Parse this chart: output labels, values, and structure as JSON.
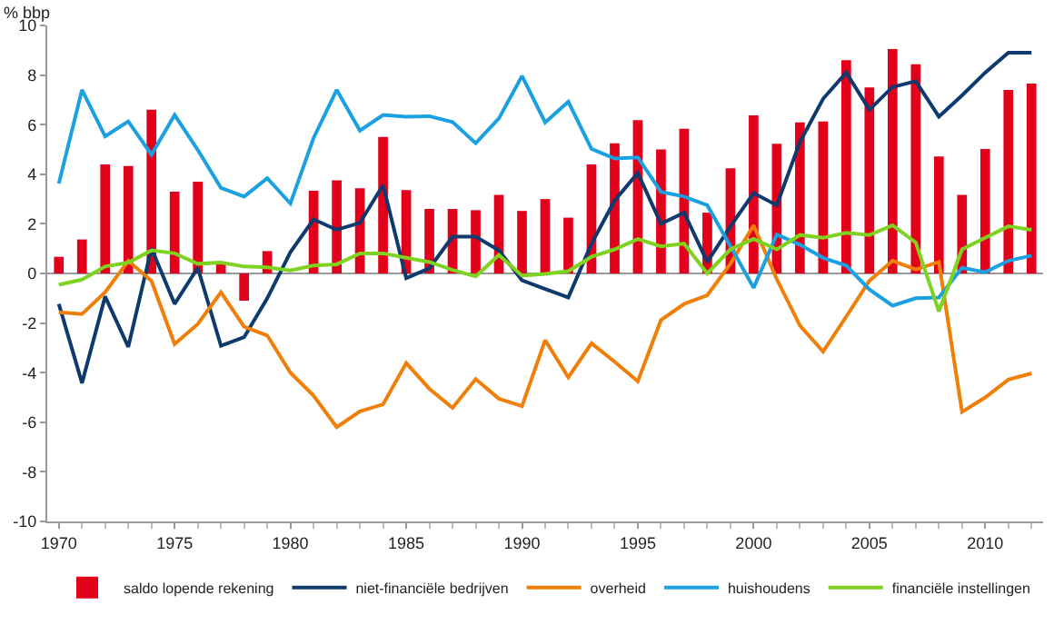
{
  "chart_data": {
    "type": "line",
    "ylabel": "% bbp",
    "x": [
      1970,
      1971,
      1972,
      1973,
      1974,
      1975,
      1976,
      1977,
      1978,
      1979,
      1980,
      1981,
      1982,
      1983,
      1984,
      1985,
      1986,
      1987,
      1988,
      1989,
      1990,
      1991,
      1992,
      1993,
      1994,
      1995,
      1996,
      1997,
      1998,
      1999,
      2000,
      2001,
      2002,
      2003,
      2004,
      2005,
      2006,
      2007,
      2008,
      2009,
      2010,
      2011,
      2012
    ],
    "xlim": [
      1969.5,
      2012.5
    ],
    "xticks": [
      1970,
      1975,
      1980,
      1985,
      1990,
      1995,
      2000,
      2005,
      2010
    ],
    "ylim": [
      -10,
      10
    ],
    "yticks": [
      -10,
      -8,
      -6,
      -4,
      -2,
      0,
      2,
      4,
      6,
      8,
      10
    ],
    "legend": "bottom",
    "marker": "none",
    "line_style": "solid",
    "series": [
      {
        "name": "saldo lopende rekening",
        "type": "bar",
        "color": "#e2001a",
        "values": [
          0.67,
          1.37,
          4.4,
          4.33,
          6.6,
          3.3,
          3.7,
          0.4,
          -1.1,
          0.9,
          0,
          3.33,
          3.75,
          3.43,
          5.5,
          3.36,
          2.6,
          2.6,
          2.55,
          3.17,
          2.52,
          3.0,
          2.25,
          4.4,
          5.25,
          6.18,
          5.0,
          5.83,
          2.45,
          4.24,
          6.37,
          5.23,
          6.09,
          6.13,
          8.6,
          7.5,
          9.05,
          8.43,
          4.72,
          3.17,
          5.02,
          7.4,
          7.66
        ]
      },
      {
        "name": "niet-financiële bedrijven",
        "color": "#0e3a6e",
        "values": [
          -1.23,
          -4.42,
          -0.93,
          -2.96,
          1.02,
          -1.23,
          0.23,
          -2.92,
          -2.57,
          -1.0,
          0.86,
          2.18,
          1.76,
          2.04,
          3.56,
          -0.19,
          0.21,
          1.48,
          1.48,
          0.93,
          -0.28,
          -0.63,
          -0.97,
          1.2,
          2.94,
          4.05,
          2.0,
          2.45,
          0.46,
          1.9,
          3.24,
          2.75,
          5.3,
          7.04,
          8.1,
          6.6,
          7.52,
          7.75,
          6.32,
          7.18,
          8.1,
          8.9,
          8.9
        ]
      },
      {
        "name": "overheid",
        "color": "#f07f09",
        "values": [
          -1.57,
          -1.64,
          -0.76,
          0.51,
          -0.3,
          -2.85,
          -2.04,
          -0.76,
          -2.15,
          -2.5,
          -4.0,
          -4.93,
          -6.2,
          -5.56,
          -5.28,
          -3.61,
          -4.65,
          -5.42,
          -4.26,
          -5.05,
          -5.35,
          -2.69,
          -4.19,
          -2.82,
          -3.56,
          -4.35,
          -1.88,
          -1.23,
          -0.88,
          0.39,
          1.94,
          -0.23,
          -2.1,
          -3.15,
          -1.74,
          -0.3,
          0.51,
          0.16,
          0.46,
          -5.58,
          -5.0,
          -4.28,
          -4.03
        ]
      },
      {
        "name": "huishoudens",
        "color": "#1ba1e2",
        "values": [
          3.63,
          7.4,
          5.53,
          6.13,
          4.79,
          6.39,
          4.98,
          3.45,
          3.1,
          3.84,
          2.82,
          5.46,
          7.4,
          5.76,
          6.39,
          6.32,
          6.34,
          6.11,
          5.25,
          6.25,
          7.96,
          6.09,
          6.92,
          5.02,
          4.63,
          4.68,
          3.29,
          3.1,
          2.75,
          1.1,
          -0.58,
          1.57,
          1.16,
          0.63,
          0.32,
          -0.65,
          -1.3,
          -1.0,
          -0.97,
          0.23,
          0.05,
          0.51,
          0.72
        ]
      },
      {
        "name": "financiële instellingen",
        "color": "#7ed321",
        "values": [
          -0.46,
          -0.25,
          0.28,
          0.44,
          0.93,
          0.81,
          0.39,
          0.44,
          0.28,
          0.25,
          0.12,
          0.32,
          0.37,
          0.81,
          0.81,
          0.63,
          0.46,
          0.14,
          -0.12,
          0.74,
          -0.09,
          -0.02,
          0.09,
          0.67,
          0.97,
          1.39,
          1.09,
          1.2,
          0,
          0.97,
          1.39,
          0.97,
          1.55,
          1.44,
          1.64,
          1.55,
          1.94,
          1.25,
          -1.53,
          0.97,
          1.44,
          1.9,
          1.76
        ]
      }
    ]
  }
}
